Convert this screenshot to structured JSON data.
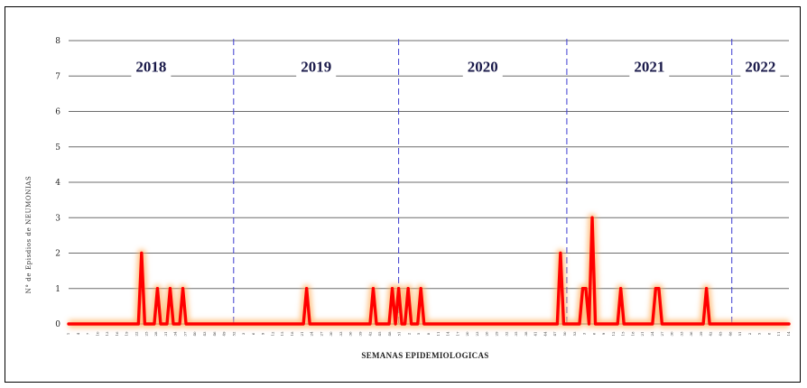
{
  "chart_data": {
    "type": "line",
    "title": "",
    "xlabel": "SEMANAS   EPIDEMIOLOGICAS",
    "ylabel": "N° de Episdios de NEUMONIAS",
    "ylim": [
      0,
      8
    ],
    "yticks": [
      0,
      1,
      2,
      3,
      4,
      5,
      6,
      7,
      8
    ],
    "grid": true,
    "legend": "none",
    "line_color": "#ff0000",
    "glow_color": "#ffb060",
    "divider_color": "#3a3ad0",
    "year_color": "#1a1a4a",
    "years": [
      {
        "label": "2018",
        "start_week_index": 0
      },
      {
        "label": "2019",
        "start_week_index": 52
      },
      {
        "label": "2020",
        "start_week_index": 104
      },
      {
        "label": "2021",
        "start_week_index": 157
      },
      {
        "label": "2022",
        "start_week_index": 209
      }
    ],
    "x_tick_labels": [
      "1",
      "4",
      "7",
      "10",
      "13",
      "16",
      "19",
      "22",
      "25",
      "28",
      "31",
      "34",
      "37",
      "40",
      "43",
      "46",
      "49",
      "52",
      "3",
      "6",
      "9",
      "12",
      "15",
      "18",
      "21",
      "24",
      "27",
      "30",
      "33",
      "36",
      "39",
      "42",
      "45",
      "48",
      "51",
      "2",
      "5",
      "8",
      "11",
      "14",
      "17",
      "20",
      "23",
      "26",
      "29",
      "32",
      "35",
      "38",
      "41",
      "44",
      "47",
      "50",
      "53",
      "3",
      "6",
      "9",
      "12",
      "15",
      "18",
      "21",
      "24",
      "27",
      "30",
      "33",
      "36",
      "39",
      "42",
      "45",
      "48",
      "51",
      "2",
      "5",
      "8",
      "11",
      "14"
    ],
    "series": [
      {
        "name": "",
        "points": [
          {
            "week_index": 23,
            "value": 2
          },
          {
            "week_index": 28,
            "value": 1
          },
          {
            "week_index": 32,
            "value": 1
          },
          {
            "week_index": 36,
            "value": 1
          },
          {
            "week_index": 75,
            "value": 1
          },
          {
            "week_index": 96,
            "value": 1
          },
          {
            "week_index": 102,
            "value": 1
          },
          {
            "week_index": 104,
            "value": 1
          },
          {
            "week_index": 107,
            "value": 1
          },
          {
            "week_index": 111,
            "value": 1
          },
          {
            "week_index": 155,
            "value": 2
          },
          {
            "week_index": 162,
            "value": 1
          },
          {
            "week_index": 163,
            "value": 1
          },
          {
            "week_index": 165,
            "value": 3
          },
          {
            "week_index": 174,
            "value": 1
          },
          {
            "week_index": 185,
            "value": 1
          },
          {
            "week_index": 186,
            "value": 1
          },
          {
            "week_index": 201,
            "value": 1
          }
        ],
        "total_weeks": 228
      }
    ]
  }
}
